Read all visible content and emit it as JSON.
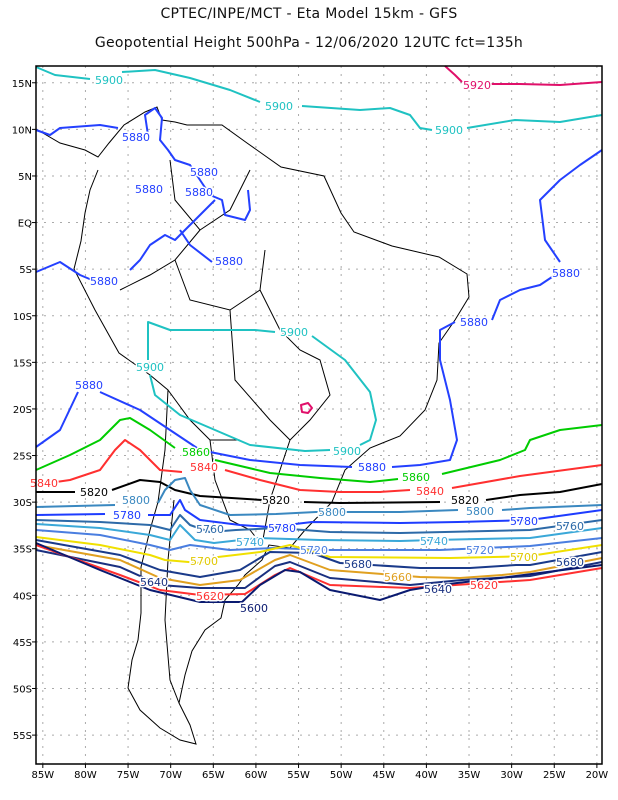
{
  "header": {
    "title": "CPTEC/INPE/MCT -  Eta Model 15km - GFS",
    "subtitle": "Geopotential Height 500hPa - 12/06/2020 12UTC fct=135h"
  },
  "map": {
    "lat_ticks": [
      {
        "value": 15,
        "label": "15N"
      },
      {
        "value": 10,
        "label": "10N"
      },
      {
        "value": 5,
        "label": "5N"
      },
      {
        "value": 0,
        "label": "EQ"
      },
      {
        "value": -5,
        "label": "5S"
      },
      {
        "value": -10,
        "label": "10S"
      },
      {
        "value": -15,
        "label": "15S"
      },
      {
        "value": -20,
        "label": "20S"
      },
      {
        "value": -25,
        "label": "25S"
      },
      {
        "value": -30,
        "label": "30S"
      },
      {
        "value": -35,
        "label": "35S"
      },
      {
        "value": -40,
        "label": "40S"
      },
      {
        "value": -45,
        "label": "45S"
      },
      {
        "value": -50,
        "label": "50S"
      },
      {
        "value": -55,
        "label": "55S"
      }
    ],
    "lon_ticks": [
      {
        "value": -85,
        "label": "85W"
      },
      {
        "value": -80,
        "label": "80W"
      },
      {
        "value": -75,
        "label": "75W"
      },
      {
        "value": -70,
        "label": "70W"
      },
      {
        "value": -65,
        "label": "65W"
      },
      {
        "value": -60,
        "label": "60W"
      },
      {
        "value": -55,
        "label": "55W"
      },
      {
        "value": -50,
        "label": "50W"
      },
      {
        "value": -45,
        "label": "45W"
      },
      {
        "value": -40,
        "label": "40W"
      },
      {
        "value": -35,
        "label": "35W"
      },
      {
        "value": -30,
        "label": "30W"
      },
      {
        "value": -25,
        "label": "25W"
      },
      {
        "value": -20,
        "label": "20W"
      }
    ],
    "lat_range": [
      -58.1,
      16.8
    ],
    "lon_range": [
      -85.8,
      -19.4
    ],
    "contour_levels": [
      {
        "value": "5920",
        "color": "#e0106a"
      },
      {
        "value": "5900",
        "color": "#1fc2c2"
      },
      {
        "value": "5880",
        "color": "#2440ff"
      },
      {
        "value": "5860",
        "color": "#00cc00"
      },
      {
        "value": "5840",
        "color": "#ff3030"
      },
      {
        "value": "5820",
        "color": "#000000"
      },
      {
        "value": "5800",
        "color": "#3a88c0"
      },
      {
        "value": "5780",
        "color": "#1e3cff"
      },
      {
        "value": "5760",
        "color": "#2d6aa8"
      },
      {
        "value": "5740",
        "color": "#3aa8d8"
      },
      {
        "value": "5720",
        "color": "#4a7ee0"
      },
      {
        "value": "5700",
        "color": "#f0e000"
      },
      {
        "value": "5680",
        "color": "#1a3a8a"
      },
      {
        "value": "5660",
        "color": "#e0a020"
      },
      {
        "value": "5640",
        "color": "#1a3080"
      },
      {
        "value": "5620",
        "color": "#ff3030"
      },
      {
        "value": "5600",
        "color": "#0a1a70"
      }
    ]
  }
}
